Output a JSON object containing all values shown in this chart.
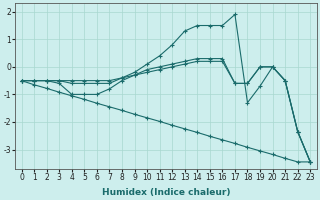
{
  "xlabel": "Humidex (Indice chaleur)",
  "background_color": "#cdeeed",
  "grid_color": "#a8d8d0",
  "line_color": "#1a6b6b",
  "xlim": [
    -0.5,
    23.5
  ],
  "ylim": [
    -3.7,
    2.3
  ],
  "yticks": [
    -3,
    -2,
    -1,
    0,
    1,
    2
  ],
  "xticks": [
    0,
    1,
    2,
    3,
    4,
    5,
    6,
    7,
    8,
    9,
    10,
    11,
    12,
    13,
    14,
    15,
    16,
    17,
    18,
    19,
    20,
    21,
    22,
    23
  ],
  "series": [
    {
      "x": [
        0,
        1,
        2,
        3,
        4,
        5,
        6,
        7,
        8,
        9,
        10,
        11,
        12,
        13,
        14,
        15,
        16,
        17,
        18,
        19,
        20,
        21,
        22,
        23
      ],
      "y": [
        -0.5,
        -0.5,
        -0.5,
        -0.5,
        -0.6,
        -0.6,
        -0.6,
        -0.6,
        -0.4,
        -0.2,
        0.1,
        0.4,
        0.8,
        1.3,
        1.5,
        1.5,
        1.5,
        1.9,
        -1.3,
        -0.7,
        0.0,
        -0.5,
        -2.35,
        -3.45
      ]
    },
    {
      "x": [
        0,
        1,
        2,
        3,
        4,
        5,
        6,
        7,
        8,
        9,
        10,
        11,
        12,
        13,
        14,
        15,
        16,
        17,
        18,
        19,
        20,
        21,
        22,
        23
      ],
      "y": [
        -0.5,
        -0.5,
        -0.5,
        -0.5,
        -0.5,
        -0.5,
        -0.5,
        -0.5,
        -0.4,
        -0.3,
        -0.2,
        -0.1,
        0.0,
        0.1,
        0.2,
        0.2,
        0.2,
        -0.6,
        -0.6,
        0.0,
        0.0,
        -0.5,
        -2.35,
        -3.45
      ]
    },
    {
      "x": [
        0,
        1,
        2,
        3,
        4,
        5,
        6,
        7,
        8,
        9,
        10,
        11,
        12,
        13,
        14,
        15,
        16,
        17,
        18,
        19,
        20,
        21,
        22,
        23
      ],
      "y": [
        -0.5,
        -0.5,
        -0.5,
        -0.6,
        -1.0,
        -1.0,
        -1.0,
        -0.8,
        -0.5,
        -0.3,
        -0.1,
        0.0,
        0.1,
        0.2,
        0.3,
        0.3,
        0.3,
        -0.6,
        -0.6,
        0.0,
        0.0,
        -0.5,
        -2.35,
        -3.45
      ]
    },
    {
      "x": [
        0,
        1,
        2,
        3,
        4,
        5,
        6,
        7,
        8,
        9,
        10,
        11,
        12,
        13,
        14,
        15,
        16,
        17,
        18,
        19,
        20,
        21,
        22,
        23
      ],
      "y": [
        -0.5,
        -0.65,
        -0.78,
        -0.92,
        -1.05,
        -1.18,
        -1.32,
        -1.45,
        -1.58,
        -1.72,
        -1.85,
        -1.98,
        -2.12,
        -2.25,
        -2.38,
        -2.52,
        -2.65,
        -2.78,
        -2.92,
        -3.05,
        -3.18,
        -3.32,
        -3.45,
        -3.45
      ]
    }
  ]
}
